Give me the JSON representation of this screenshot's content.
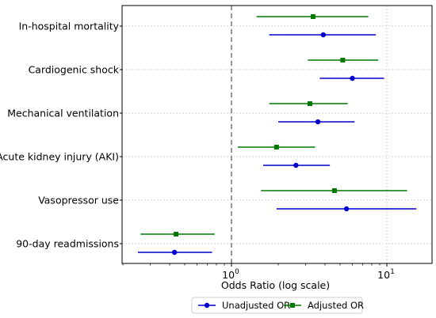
{
  "chart_data": {
    "type": "forest",
    "xlabel": "Odds Ratio (log scale)",
    "xscale": "log",
    "xlim": [
      0.18,
      20
    ],
    "x_ticks": [
      {
        "value": 1,
        "label": "10^0"
      },
      {
        "value": 10,
        "label": "10^1"
      }
    ],
    "reference_line": 1,
    "grid": true,
    "legend_position": "bottom",
    "categories": [
      "In-hospital mortality",
      "Cardiogenic shock",
      "Mechanical ventilation",
      "Acute kidney injury (AKI)",
      "Vasopressor use",
      "90-day readmissions"
    ],
    "series": [
      {
        "name": "Unadjusted OR",
        "color": "#0000cc",
        "marker": "circle",
        "points": [
          {
            "or": 3.9,
            "lower": 1.75,
            "upper": 8.5
          },
          {
            "or": 6.0,
            "lower": 3.7,
            "upper": 9.6
          },
          {
            "or": 3.6,
            "lower": 2.0,
            "upper": 6.2
          },
          {
            "or": 2.6,
            "lower": 1.6,
            "upper": 4.3
          },
          {
            "or": 5.5,
            "lower": 1.95,
            "upper": 15.5
          },
          {
            "or": 0.43,
            "lower": 0.25,
            "upper": 0.75
          }
        ]
      },
      {
        "name": "Adjusted OR",
        "color": "#007700",
        "marker": "square",
        "points": [
          {
            "or": 3.35,
            "lower": 1.45,
            "upper": 7.6
          },
          {
            "or": 5.2,
            "lower": 3.1,
            "upper": 8.8
          },
          {
            "or": 3.2,
            "lower": 1.75,
            "upper": 5.6
          },
          {
            "or": 1.95,
            "lower": 1.1,
            "upper": 3.45
          },
          {
            "or": 4.6,
            "lower": 1.55,
            "upper": 13.5
          },
          {
            "or": 0.44,
            "lower": 0.26,
            "upper": 0.78
          }
        ]
      }
    ]
  }
}
